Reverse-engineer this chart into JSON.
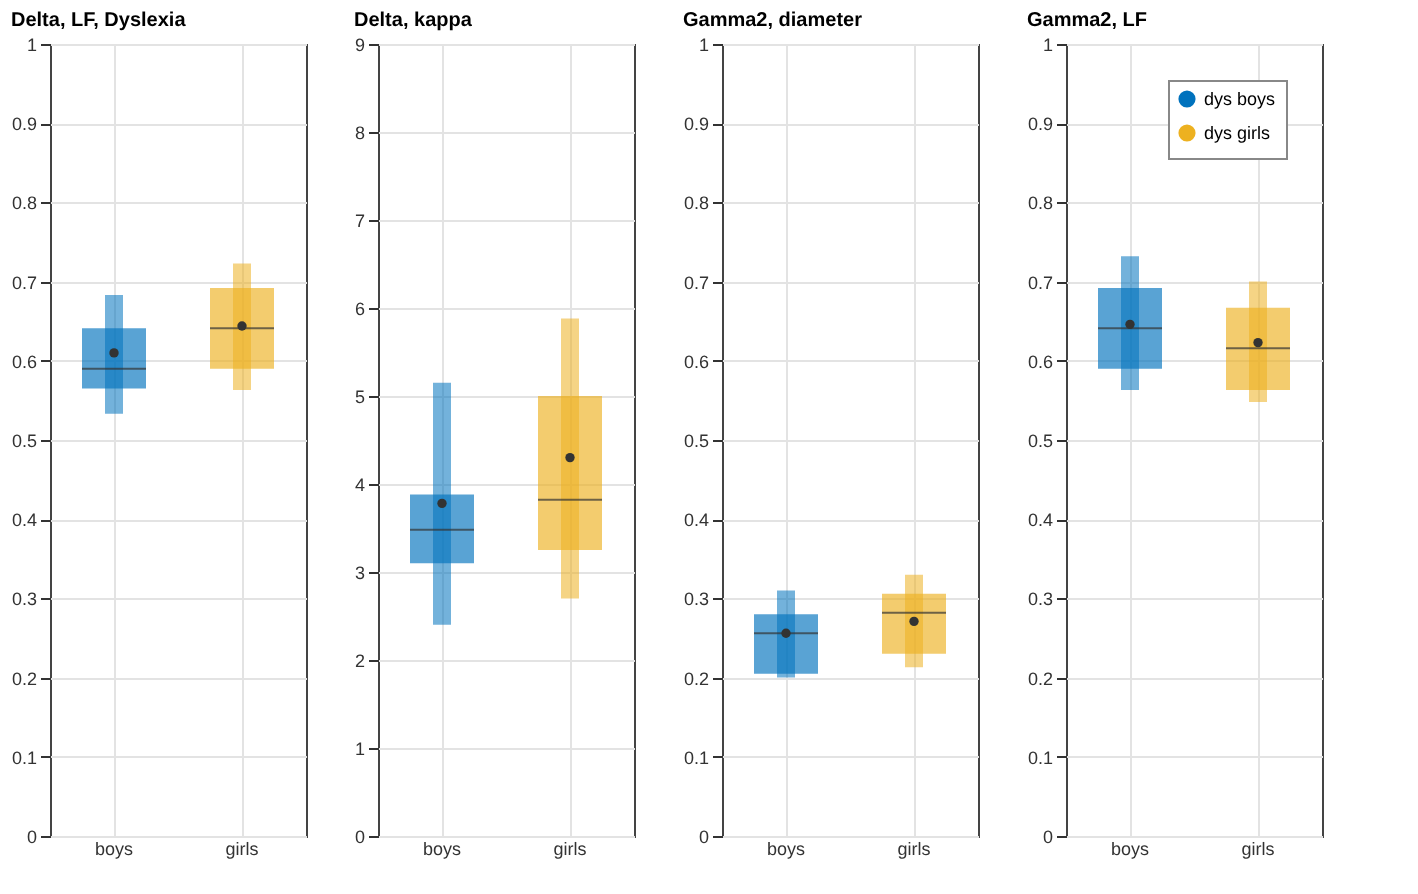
{
  "chart_data": [
    {
      "type": "box",
      "title": "Delta, LF, Dyslexia",
      "categories": [
        "boys",
        "girls"
      ],
      "ylim": [
        0,
        1
      ],
      "yticks": [
        0,
        0.1,
        0.2,
        0.3,
        0.4,
        0.5,
        0.6,
        0.7,
        0.8,
        0.9,
        1
      ],
      "grid": true,
      "series": [
        {
          "color": "#0072bd",
          "boxes": [
            {
              "low": 0.533,
              "q1": 0.565,
              "median": 0.59,
              "q3": 0.641,
              "high": 0.683,
              "mean": 0.61
            },
            null
          ]
        },
        {
          "color": "#edb120",
          "boxes": [
            null,
            {
              "low": 0.563,
              "q1": 0.59,
              "median": 0.641,
              "q3": 0.692,
              "high": 0.723,
              "mean": 0.644
            }
          ]
        }
      ]
    },
    {
      "type": "box",
      "title": "Delta, kappa",
      "categories": [
        "boys",
        "girls"
      ],
      "ylim": [
        0,
        9
      ],
      "yticks": [
        0,
        1,
        2,
        3,
        4,
        5,
        6,
        7,
        8,
        9
      ],
      "grid": true,
      "series": [
        {
          "color": "#0072bd",
          "boxes": [
            {
              "low": 2.4,
              "q1": 3.1,
              "median": 3.48,
              "q3": 3.88,
              "high": 5.15,
              "mean": 3.78
            },
            null
          ]
        },
        {
          "color": "#edb120",
          "boxes": [
            null,
            {
              "low": 2.7,
              "q1": 3.25,
              "median": 3.82,
              "q3": 5.0,
              "high": 5.88,
              "mean": 4.3
            }
          ]
        }
      ]
    },
    {
      "type": "box",
      "title": "Gamma2, diameter",
      "categories": [
        "boys",
        "girls"
      ],
      "ylim": [
        0,
        1
      ],
      "yticks": [
        0,
        0.1,
        0.2,
        0.3,
        0.4,
        0.5,
        0.6,
        0.7,
        0.8,
        0.9,
        1
      ],
      "grid": true,
      "series": [
        {
          "color": "#0072bd",
          "boxes": [
            {
              "low": 0.2,
              "q1": 0.205,
              "median": 0.256,
              "q3": 0.28,
              "high": 0.31,
              "mean": 0.256
            },
            null
          ]
        },
        {
          "color": "#edb120",
          "boxes": [
            null,
            {
              "low": 0.213,
              "q1": 0.23,
              "median": 0.282,
              "q3": 0.306,
              "high": 0.33,
              "mean": 0.271
            }
          ]
        }
      ]
    },
    {
      "type": "box",
      "title": "Gamma2, LF",
      "categories": [
        "boys",
        "girls"
      ],
      "ylim": [
        0,
        1
      ],
      "yticks": [
        0,
        0.1,
        0.2,
        0.3,
        0.4,
        0.5,
        0.6,
        0.7,
        0.8,
        0.9,
        1
      ],
      "grid": true,
      "legend": "top right",
      "series": [
        {
          "name": "dys boys",
          "color": "#0072bd",
          "boxes": [
            {
              "low": 0.563,
              "q1": 0.59,
              "median": 0.641,
              "q3": 0.692,
              "high": 0.732,
              "mean": 0.646
            },
            null
          ]
        },
        {
          "name": "dys girls",
          "color": "#edb120",
          "boxes": [
            null,
            {
              "low": 0.548,
              "q1": 0.563,
              "median": 0.616,
              "q3": 0.667,
              "high": 0.7,
              "mean": 0.623
            }
          ]
        }
      ]
    }
  ]
}
